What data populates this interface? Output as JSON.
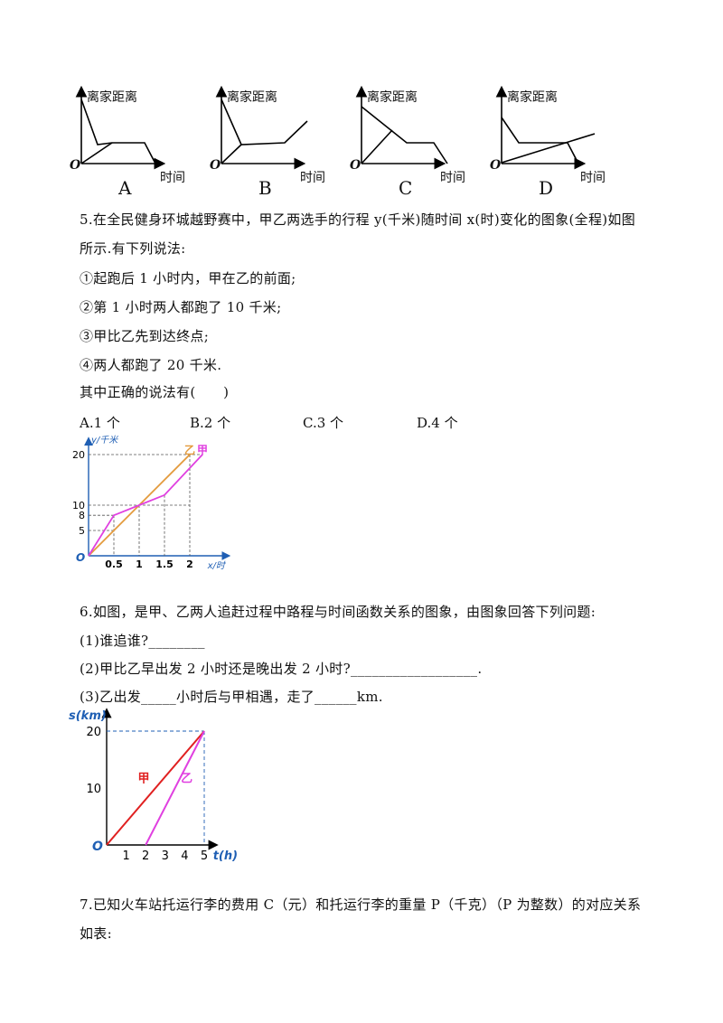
{
  "top_graphs": {
    "y_label": "离家距离",
    "x_label": "时间",
    "origin": "O",
    "letters": [
      "A",
      "B",
      "C",
      "D"
    ]
  },
  "q5": {
    "stem_line1": "5.在全民健身环城越野赛中，甲乙两选手的行程 y(千米)随时间 x(时)变化的图象(全程)如图",
    "stem_line2": "所示.有下列说法:",
    "s1": "①起跑后 1 小时内，甲在乙的前面;",
    "s2": "②第 1 小时两人都跑了 10 千米;",
    "s3": "③甲比乙先到达终点;",
    "s4": "④两人都跑了 20 千米.",
    "ask": "其中正确的说法有(　　)",
    "options": [
      "A.1 个",
      "B.2 个",
      "C.3 个",
      "D.4 个"
    ]
  },
  "q5_chart": {
    "chart_data": {
      "type": "line",
      "ylabel": "y/千米",
      "xlabel": "x/时",
      "origin": "O",
      "x_ticks": [
        "0.5",
        "1",
        "1.5",
        "2"
      ],
      "y_ticks": [
        "5",
        "8",
        "10",
        "20"
      ],
      "series": [
        {
          "name": "乙",
          "color": "#e39a3c",
          "x": [
            0,
            2
          ],
          "y": [
            0,
            20
          ]
        },
        {
          "name": "甲",
          "color": "#e040e0",
          "x": [
            0,
            0.5,
            1,
            1.5,
            2.25
          ],
          "y": [
            0,
            8,
            10,
            12,
            20
          ]
        }
      ],
      "xlim": [
        0,
        2.4
      ],
      "ylim": [
        0,
        22
      ]
    }
  },
  "q6": {
    "stem": "6.如图，是甲、乙两人追赶过程中路程与时间函数关系的图象，由图象回答下列问题:",
    "p1": "(1)谁追谁?________",
    "p2": "(2)甲比乙早出发 2 小时还是晚出发 2 小时?__________________.",
    "p3": "(3)乙出发_____小时后与甲相遇，走了______km."
  },
  "q6_chart": {
    "chart_data": {
      "type": "line",
      "ylabel": "s(km)",
      "xlabel": "t(h)",
      "origin": "O",
      "x_ticks": [
        "1",
        "2",
        "3",
        "4",
        "5"
      ],
      "y_ticks": [
        "10",
        "20"
      ],
      "series": [
        {
          "name": "甲",
          "color": "#e02020",
          "x": [
            0,
            5
          ],
          "y": [
            0,
            20
          ]
        },
        {
          "name": "乙",
          "color": "#e040e0",
          "x": [
            2,
            5
          ],
          "y": [
            0,
            20
          ]
        }
      ],
      "xlim": [
        0,
        5.8
      ],
      "ylim": [
        0,
        22
      ]
    }
  },
  "q7": {
    "line1": "7.已知火车站托运行李的费用 C（元）和托运行李的重量 P（千克）（P 为整数）的对应关系",
    "line2": "如表:"
  }
}
